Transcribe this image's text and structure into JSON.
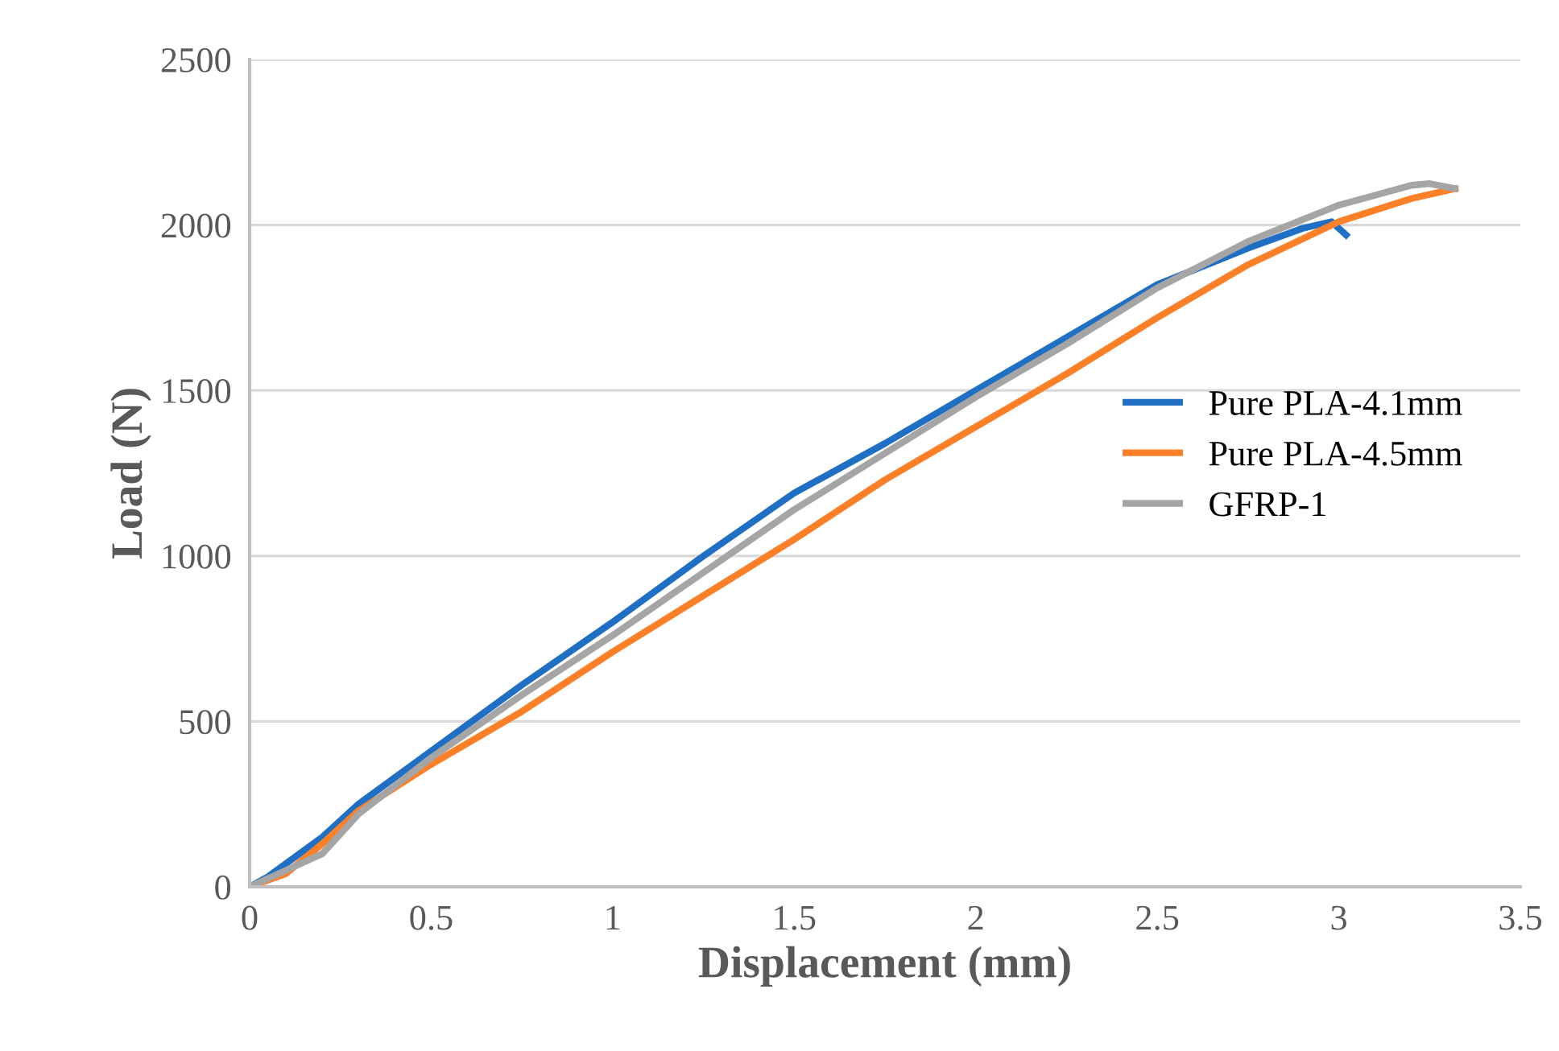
{
  "chart_data": {
    "type": "line",
    "xlabel": "Displacement (mm)",
    "ylabel": "Load (N)",
    "xlim": [
      0,
      3.5
    ],
    "xticks": [
      0,
      0.5,
      1,
      1.5,
      2,
      2.5,
      3,
      3.5
    ],
    "ylim": [
      0,
      2500
    ],
    "yticks": [
      0,
      500,
      1000,
      1500,
      2000,
      2500
    ],
    "grid": "y",
    "legend": "right",
    "marker": "none",
    "line_style": "solid",
    "series": [
      {
        "name": "Pure PLA-4.1mm",
        "color": "#1f6fc5",
        "x": [
          0,
          0.05,
          0.1,
          0.2,
          0.3,
          0.5,
          0.75,
          1.0,
          1.25,
          1.5,
          1.75,
          2.0,
          2.25,
          2.5,
          2.75,
          2.9,
          2.98,
          3.02
        ],
        "values": [
          0,
          30,
          70,
          150,
          250,
          410,
          610,
          800,
          1000,
          1190,
          1340,
          1500,
          1660,
          1820,
          1930,
          1990,
          2010,
          1970
        ]
      },
      {
        "name": "Pure PLA-4.5mm",
        "color": "#fd7f27",
        "x": [
          0,
          0.1,
          0.2,
          0.3,
          0.5,
          0.75,
          1.0,
          1.25,
          1.5,
          1.75,
          2.0,
          2.25,
          2.5,
          2.75,
          3.0,
          3.2,
          3.32
        ],
        "values": [
          0,
          40,
          130,
          230,
          370,
          530,
          710,
          880,
          1050,
          1230,
          1390,
          1550,
          1720,
          1880,
          2010,
          2080,
          2110
        ]
      },
      {
        "name": "GFRP-1",
        "color": "#a5a5a5",
        "x": [
          0,
          0.1,
          0.2,
          0.3,
          0.5,
          0.75,
          1.0,
          1.25,
          1.5,
          1.75,
          2.0,
          2.25,
          2.5,
          2.75,
          3.0,
          3.2,
          3.25,
          3.32
        ],
        "values": [
          0,
          50,
          100,
          220,
          390,
          580,
          760,
          950,
          1140,
          1310,
          1480,
          1640,
          1810,
          1950,
          2060,
          2120,
          2125,
          2110
        ]
      }
    ]
  }
}
